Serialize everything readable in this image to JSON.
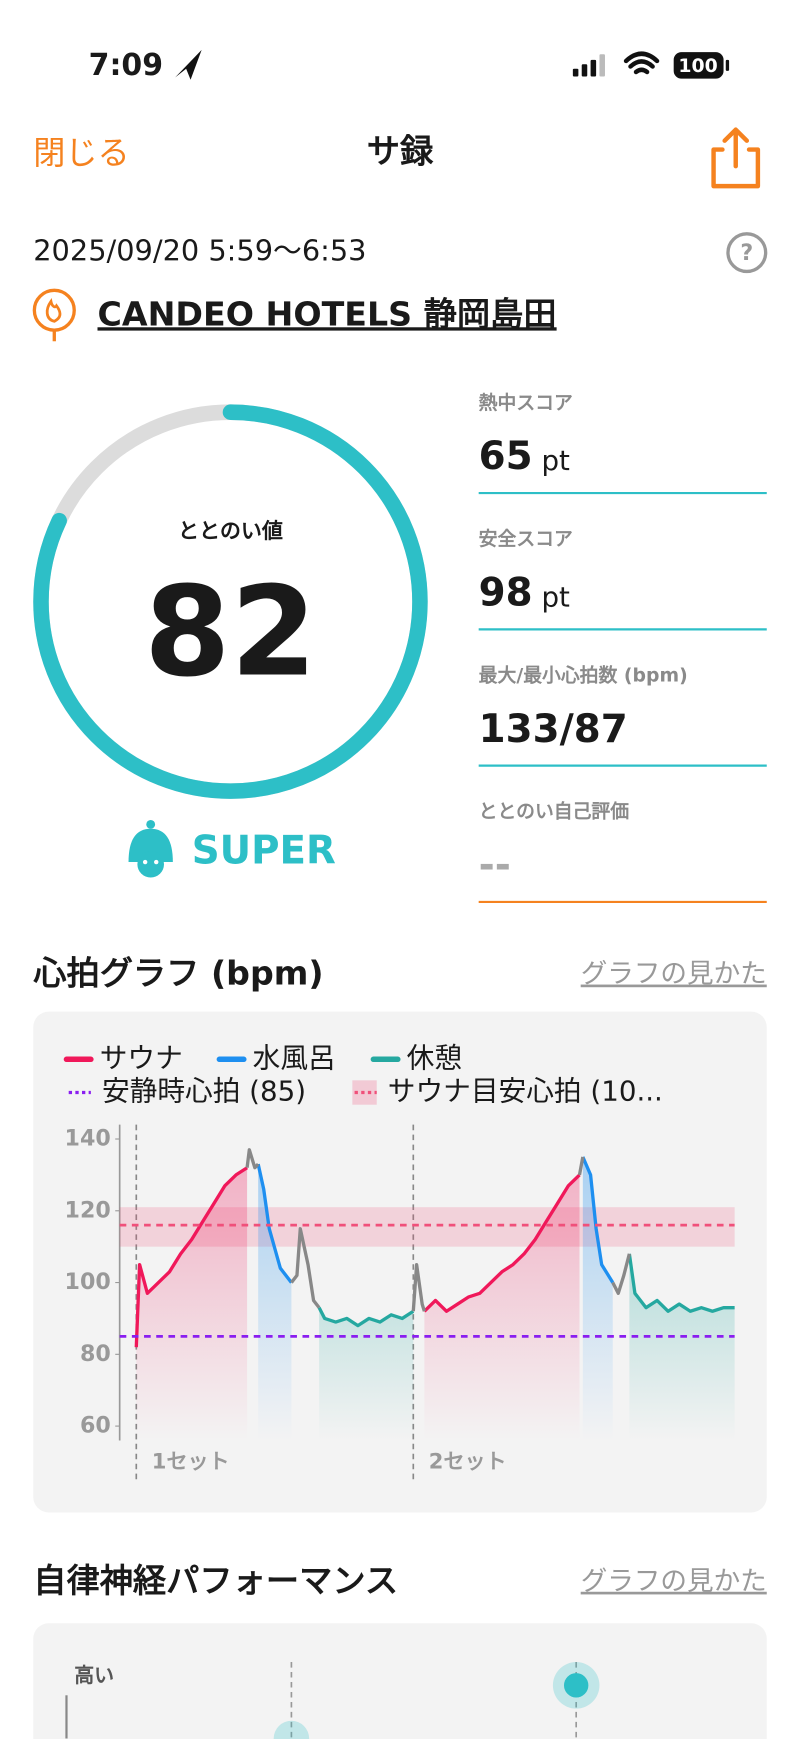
{
  "status_bar": {
    "time": "7:09",
    "battery": "100"
  },
  "nav": {
    "close": "閉じる",
    "title": "サ録"
  },
  "session": {
    "datetime": "2025/09/20 5:59〜6:53",
    "facility": "CANDEO HOTELS 静岡島田"
  },
  "score": {
    "label": "ととのい値",
    "value": 82,
    "ring_max": 100,
    "rank": "SUPER",
    "color": "#2dbfc7"
  },
  "metrics": [
    {
      "label": "熱中スコア",
      "value": "65",
      "unit": "pt"
    },
    {
      "label": "安全スコア",
      "value": "98",
      "unit": "pt"
    },
    {
      "label": "最大/最小心拍数 (bpm)",
      "value": "133/87"
    },
    {
      "label": "ととのい自己評価",
      "value": "--"
    }
  ],
  "heart_chart": {
    "type": "line",
    "title": "心拍グラフ (bpm)",
    "help": "グラフの見かた",
    "ylim": [
      56,
      144
    ],
    "yticks": [
      60,
      80,
      100,
      120,
      140
    ],
    "series": [
      {
        "name": "サウナ",
        "color": "#f0185a",
        "x": [
          0,
          0.3,
          1,
          2,
          3,
          4,
          5,
          6,
          7,
          8,
          9,
          10,
          18,
          26,
          27,
          28,
          29,
          30,
          31,
          32,
          33,
          34,
          35,
          36,
          37,
          38,
          39,
          40
        ],
        "values": [
          82,
          105,
          97,
          100,
          103,
          108,
          112,
          117,
          122,
          127,
          130,
          132,
          null,
          92,
          95,
          92,
          94,
          96,
          97,
          100,
          103,
          105,
          108,
          112,
          117,
          122,
          127,
          130
        ]
      },
      {
        "name": "水風呂",
        "color": "#1e8ff0",
        "x": [
          11,
          11.5,
          12,
          13,
          14,
          27,
          40.3,
          41,
          41.5,
          42,
          43
        ],
        "values": [
          133,
          126,
          115,
          104,
          100,
          null,
          135,
          130,
          115,
          105,
          100
        ]
      },
      {
        "name": "休憩",
        "color": "#25a8a0",
        "x": [
          16.5,
          17,
          18,
          19,
          20,
          21,
          22,
          23,
          24,
          25,
          35,
          44.5,
          45,
          46,
          47,
          48,
          49,
          50,
          51,
          52,
          53,
          54
        ],
        "values": [
          93,
          90,
          89,
          90,
          88,
          90,
          89,
          91,
          90,
          92,
          null,
          108,
          97,
          93,
          95,
          92,
          94,
          92,
          93,
          92,
          93,
          93
        ]
      },
      {
        "color": "#888888",
        "x": [
          10,
          10.2,
          10.7,
          11,
          12.5,
          14,
          14.5,
          14.8,
          15.5,
          16,
          16.5,
          20,
          25,
          25.3,
          25.8,
          26,
          35,
          40,
          40.3,
          42,
          43,
          43.5,
          44,
          44.5
        ],
        "values": [
          132,
          137,
          132,
          133,
          null,
          100,
          102,
          115,
          105,
          95,
          93,
          null,
          92,
          105,
          94,
          92,
          null,
          130,
          135,
          null,
          100,
          97,
          102,
          108
        ]
      }
    ],
    "ref_lines": [
      {
        "name": "安静時心拍 (85)",
        "value": 85,
        "color": "#8a1ef0"
      },
      {
        "name": "サウナ目安心拍 (10...",
        "value": 116,
        "band": [
          110,
          121
        ],
        "color": "#f0507a"
      }
    ],
    "sets": [
      {
        "label": "1セット",
        "x": 0
      },
      {
        "label": "2セット",
        "x": 25
      }
    ]
  },
  "autonomic": {
    "title": "自律神経パフォーマンス",
    "help": "グラフの見かた",
    "y_label": "高い"
  }
}
